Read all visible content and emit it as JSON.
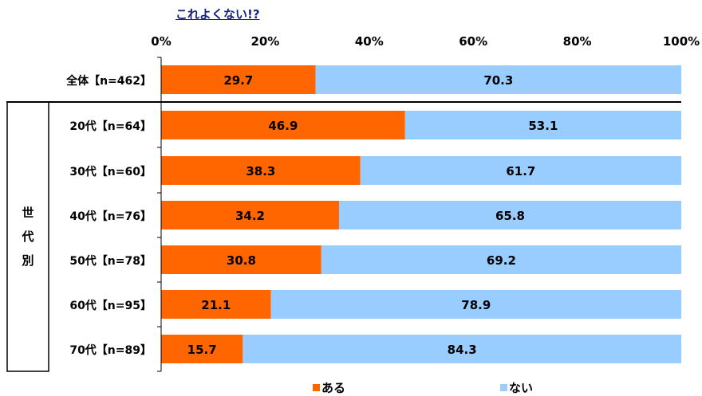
{
  "chart_data": {
    "type": "bar",
    "orientation": "horizontal",
    "stacked": true,
    "title": "これよくない!?",
    "categories": [
      "全体【n=462】",
      "20代【n=64】",
      "30代【n=60】",
      "40代【n=76】",
      "50代【n=78】",
      "60代【n=95】",
      "70代【n=89】"
    ],
    "group_label": "世代別",
    "series": [
      {
        "name": "ある",
        "color": "#ff6600",
        "values": [
          29.7,
          46.9,
          38.3,
          34.2,
          30.8,
          21.1,
          15.7
        ]
      },
      {
        "name": "ない",
        "color": "#99ccff",
        "values": [
          70.3,
          53.1,
          61.7,
          65.8,
          69.2,
          78.9,
          84.3
        ]
      }
    ],
    "xlim": [
      0,
      100
    ],
    "x_ticks": [
      "0%",
      "20%",
      "40%",
      "60%",
      "80%",
      "100%"
    ],
    "grid": false,
    "legend_position": "bottom"
  }
}
